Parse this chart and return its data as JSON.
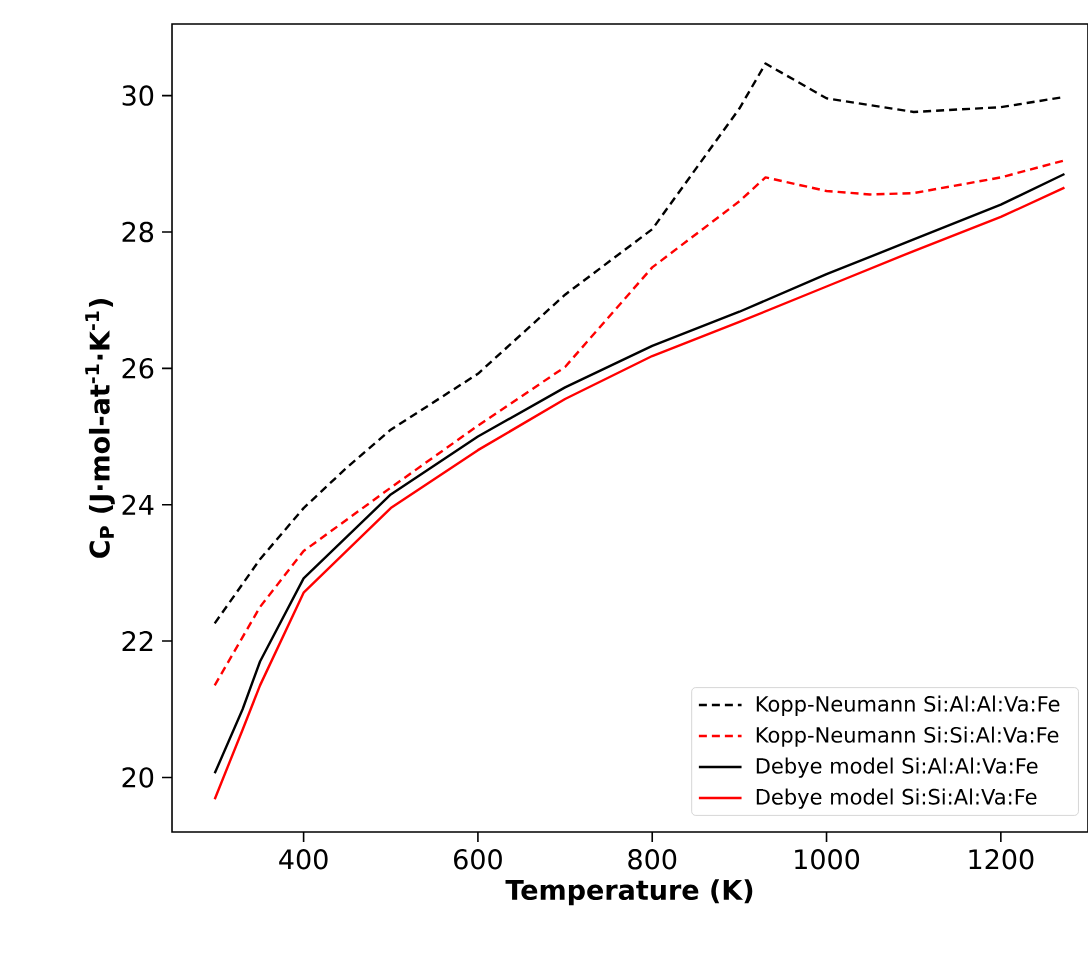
{
  "chart_data": {
    "type": "line",
    "xlabel": "Temperature (K)",
    "ylabel": "C$_{P}$ (J·mol-at$^{-1}$·K$^{-1}$)",
    "xlim": [
      249,
      1300
    ],
    "ylim": [
      19.2,
      31.05
    ],
    "xticks": [
      400,
      600,
      800,
      1000,
      1200
    ],
    "yticks": [
      20,
      22,
      24,
      26,
      28,
      30
    ],
    "grid": false,
    "legend": "bottom right",
    "series": [
      {
        "name": "Kopp-Neumann Si:Al:Al:Va:Fe",
        "color": "#000000",
        "line_style": "dashed",
        "x": [
          298,
          350,
          400,
          450,
          500,
          600,
          700,
          800,
          900,
          930,
          1000,
          1100,
          1200,
          1273
        ],
        "values": [
          22.26,
          23.2,
          23.95,
          24.55,
          25.1,
          25.92,
          27.08,
          28.04,
          29.81,
          30.47,
          29.96,
          29.76,
          29.83,
          29.98
        ]
      },
      {
        "name": "Kopp-Neumann Si:Si:Al:Va:Fe",
        "color": "#ff0000",
        "line_style": "dashed",
        "x": [
          298,
          350,
          400,
          500,
          600,
          700,
          800,
          900,
          930,
          1000,
          1050,
          1100,
          1200,
          1273
        ],
        "values": [
          21.35,
          22.5,
          23.32,
          24.25,
          25.16,
          26.02,
          27.48,
          28.45,
          28.8,
          28.6,
          28.55,
          28.57,
          28.8,
          29.05
        ]
      },
      {
        "name": "Debye model Si:Al:Al:Va:Fe",
        "color": "#000000",
        "line_style": "solid",
        "x": [
          298,
          330,
          350,
          400,
          500,
          600,
          700,
          800,
          900,
          1000,
          1100,
          1200,
          1273
        ],
        "values": [
          20.06,
          21.0,
          21.7,
          22.92,
          24.15,
          25.0,
          25.72,
          26.33,
          26.83,
          27.38,
          27.89,
          28.4,
          28.85
        ]
      },
      {
        "name": "Debye model Si:Si:Al:Va:Fe",
        "color": "#ff0000",
        "line_style": "solid",
        "x": [
          298,
          330,
          350,
          400,
          500,
          600,
          700,
          800,
          900,
          1000,
          1100,
          1200,
          1273
        ],
        "values": [
          19.68,
          20.7,
          21.35,
          22.71,
          23.95,
          24.8,
          25.55,
          26.18,
          26.68,
          27.2,
          27.72,
          28.22,
          28.65
        ]
      }
    ]
  }
}
